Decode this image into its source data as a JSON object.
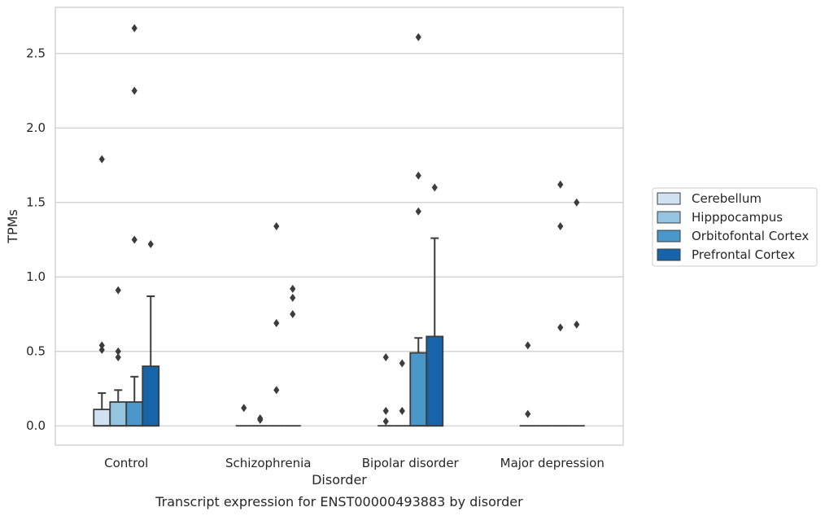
{
  "chart_data": {
    "type": "boxplot",
    "xlabel": "Disorder",
    "ylabel": "TPMs",
    "caption": "Transcript expression for ENST00000493883 by disorder",
    "ylim": [
      -0.13,
      2.81
    ],
    "yticks": [
      "0.0",
      "0.5",
      "1.0",
      "1.5",
      "2.0",
      "2.5"
    ],
    "ytick_values": [
      0.0,
      0.5,
      1.0,
      1.5,
      2.0,
      2.5
    ],
    "grid": true,
    "legend_position": "right",
    "categories": [
      "Control",
      "Schizophrenia",
      "Bipolar disorder",
      "Major depression"
    ],
    "series": [
      {
        "name": "Cerebellum",
        "color": "#d0e1f2",
        "boxes": [
          {
            "q1": 0.0,
            "median": 0.0,
            "q3": 0.11,
            "whisker_low": 0.0,
            "whisker_high": 0.22,
            "outliers": [
              0.51,
              0.54,
              1.79
            ]
          },
          {
            "q1": 0.0,
            "median": 0.0,
            "q3": 0.0,
            "whisker_low": 0.0,
            "whisker_high": 0.0,
            "outliers": [
              0.12
            ]
          },
          {
            "q1": 0.0,
            "median": 0.0,
            "q3": 0.0,
            "whisker_low": 0.0,
            "whisker_high": 0.0,
            "outliers": [
              0.03,
              0.1,
              0.46
            ]
          },
          {
            "q1": 0.0,
            "median": 0.0,
            "q3": 0.0,
            "whisker_low": 0.0,
            "whisker_high": 0.0,
            "outliers": [
              0.08,
              0.54
            ]
          }
        ]
      },
      {
        "name": "Hipppocampus",
        "color": "#94c4df",
        "boxes": [
          {
            "q1": 0.0,
            "median": 0.0,
            "q3": 0.16,
            "whisker_low": 0.0,
            "whisker_high": 0.24,
            "outliers": [
              0.46,
              0.5,
              0.91
            ]
          },
          {
            "q1": 0.0,
            "median": 0.0,
            "q3": 0.0,
            "whisker_low": 0.0,
            "whisker_high": 0.0,
            "outliers": [
              0.04,
              0.05
            ]
          },
          {
            "q1": 0.0,
            "median": 0.0,
            "q3": 0.0,
            "whisker_low": 0.0,
            "whisker_high": 0.0,
            "outliers": [
              0.1,
              0.42
            ]
          },
          {
            "q1": 0.0,
            "median": 0.0,
            "q3": 0.0,
            "whisker_low": 0.0,
            "whisker_high": 0.0,
            "outliers": []
          }
        ]
      },
      {
        "name": "Orbitofontal Cortex",
        "color": "#4a98c9",
        "boxes": [
          {
            "q1": 0.0,
            "median": 0.0,
            "q3": 0.16,
            "whisker_low": 0.0,
            "whisker_high": 0.33,
            "outliers": [
              1.25,
              2.25,
              2.67
            ]
          },
          {
            "q1": 0.0,
            "median": 0.0,
            "q3": 0.0,
            "whisker_low": 0.0,
            "whisker_high": 0.0,
            "outliers": [
              0.24,
              0.69,
              1.34
            ]
          },
          {
            "q1": 0.0,
            "median": 0.0,
            "q3": 0.49,
            "whisker_low": 0.0,
            "whisker_high": 0.59,
            "outliers": [
              1.44,
              1.68,
              2.61
            ]
          },
          {
            "q1": 0.0,
            "median": 0.0,
            "q3": 0.0,
            "whisker_low": 0.0,
            "whisker_high": 0.0,
            "outliers": [
              0.66,
              1.34,
              1.62
            ]
          }
        ]
      },
      {
        "name": "Prefrontal Cortex",
        "color": "#1764ab",
        "boxes": [
          {
            "q1": 0.0,
            "median": 0.0,
            "q3": 0.4,
            "whisker_low": 0.0,
            "whisker_high": 0.87,
            "outliers": [
              1.22
            ]
          },
          {
            "q1": 0.0,
            "median": 0.0,
            "q3": 0.0,
            "whisker_low": 0.0,
            "whisker_high": 0.0,
            "outliers": [
              0.75,
              0.86,
              0.92
            ]
          },
          {
            "q1": 0.0,
            "median": 0.0,
            "q3": 0.6,
            "whisker_low": 0.0,
            "whisker_high": 1.26,
            "outliers": [
              1.6
            ]
          },
          {
            "q1": 0.0,
            "median": 0.0,
            "q3": 0.0,
            "whisker_low": 0.0,
            "whisker_high": 0.0,
            "outliers": [
              0.68,
              1.5
            ]
          }
        ]
      }
    ]
  }
}
